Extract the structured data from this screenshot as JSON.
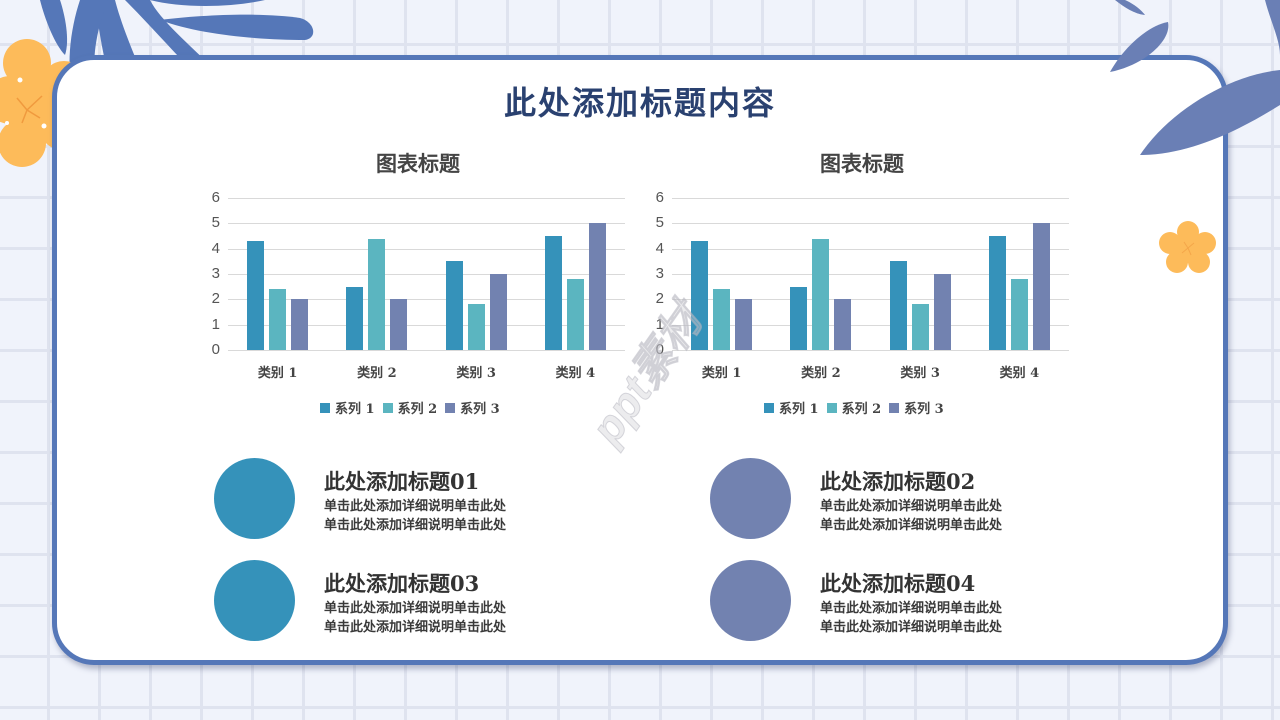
{
  "slide": {
    "title": "此处添加标题内容",
    "watermark": "ppt素材"
  },
  "colors": {
    "background": "#f0f3fb",
    "grid_line": "#dfe3ef",
    "card_border": "#5577b8",
    "series1": "#3592ba",
    "series2": "#5bb5c0",
    "series3": "#7282b0",
    "leaf": "#5577b8",
    "flower": "#fdbb5a",
    "title_text": "#2a4170"
  },
  "chart_data": [
    {
      "type": "bar",
      "title": "图表标题",
      "categories": [
        "类别 1",
        "类别 2",
        "类别 3",
        "类别 4"
      ],
      "series": [
        {
          "name": "系列 1",
          "values": [
            4.3,
            2.5,
            3.5,
            4.5
          ]
        },
        {
          "name": "系列 2",
          "values": [
            2.4,
            4.4,
            1.8,
            2.8
          ]
        },
        {
          "name": "系列 3",
          "values": [
            2,
            2,
            3,
            5
          ]
        }
      ],
      "xlabel": "",
      "ylabel": "",
      "ylim": [
        0,
        6
      ],
      "yticks": [
        "0",
        "1",
        "2",
        "3",
        "4",
        "5",
        "6"
      ],
      "grid": true,
      "legend_position": "bottom"
    },
    {
      "type": "bar",
      "title": "图表标题",
      "categories": [
        "类别 1",
        "类别 2",
        "类别 3",
        "类别 4"
      ],
      "series": [
        {
          "name": "系列 1",
          "values": [
            4.3,
            2.5,
            3.5,
            4.5
          ]
        },
        {
          "name": "系列 2",
          "values": [
            2.4,
            4.4,
            1.8,
            2.8
          ]
        },
        {
          "name": "系列 3",
          "values": [
            2,
            2,
            3,
            5
          ]
        }
      ],
      "xlabel": "",
      "ylabel": "",
      "ylim": [
        0,
        6
      ],
      "yticks": [
        "0",
        "1",
        "2",
        "3",
        "4",
        "5",
        "6"
      ],
      "grid": true,
      "legend_position": "bottom"
    }
  ],
  "items": [
    {
      "title": "此处添加标题01",
      "desc1": "单击此处添加详细说明单击此处",
      "desc2": "单击此处添加详细说明单击此处",
      "color": "#3592ba"
    },
    {
      "title": "此处添加标题02",
      "desc1": "单击此处添加详细说明单击此处",
      "desc2": "单击此处添加详细说明单击此处",
      "color": "#7282b0"
    },
    {
      "title": "此处添加标题03",
      "desc1": "单击此处添加详细说明单击此处",
      "desc2": "单击此处添加详细说明单击此处",
      "color": "#3592ba"
    },
    {
      "title": "此处添加标题04",
      "desc1": "单击此处添加详细说明单击此处",
      "desc2": "单击此处添加详细说明单击此处",
      "color": "#7282b0"
    }
  ]
}
